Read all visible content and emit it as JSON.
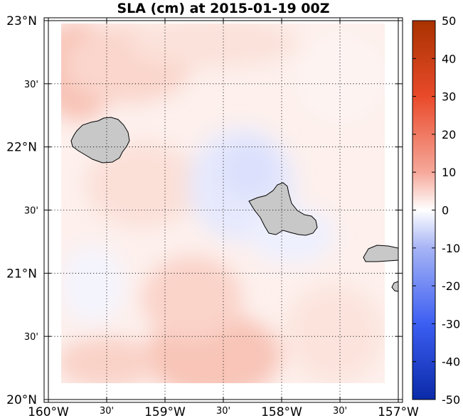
{
  "title": "SLA (cm) at 2015-01-19 00Z",
  "map": {
    "lon_range": [
      -160,
      -157
    ],
    "lat_range": [
      20,
      23
    ],
    "x_ticks": [
      {
        "lon": -160,
        "label": "160°W",
        "major": true
      },
      {
        "lon": -159.5,
        "label": "30'",
        "major": false
      },
      {
        "lon": -159,
        "label": "159°W",
        "major": true
      },
      {
        "lon": -158.5,
        "label": "30'",
        "major": false
      },
      {
        "lon": -158,
        "label": "158°W",
        "major": true
      },
      {
        "lon": -157.5,
        "label": "30'",
        "major": false
      },
      {
        "lon": -157,
        "label": "157°W",
        "major": true
      }
    ],
    "y_ticks": [
      {
        "lat": 23,
        "label": "23°N",
        "major": true
      },
      {
        "lat": 22.5,
        "label": "30'",
        "major": false
      },
      {
        "lat": 22,
        "label": "22°N",
        "major": true
      },
      {
        "lat": 21.5,
        "label": "30'",
        "major": false
      },
      {
        "lat": 21,
        "label": "21°N",
        "major": true
      },
      {
        "lat": 20.5,
        "label": "30'",
        "major": false
      },
      {
        "lat": 20,
        "label": "20°N",
        "major": true
      }
    ],
    "grid": "dotted",
    "land_color": "#c8c8c8",
    "field": {
      "variable": "SLA",
      "units": "cm",
      "lon_extent": [
        -159.9,
        -157.15
      ],
      "lat_extent": [
        20.25,
        22.95
      ],
      "sample_values": [
        {
          "lon": -159.7,
          "lat": 22.6,
          "value": 10
        },
        {
          "lon": -158.1,
          "lat": 21.8,
          "value": -3
        },
        {
          "lon": -158.7,
          "lat": 20.4,
          "value": 10
        },
        {
          "lon": -159.75,
          "lat": 20.9,
          "value": -1
        },
        {
          "lon": -157.5,
          "lat": 22.5,
          "value": 3
        }
      ]
    }
  },
  "colorbar": {
    "range": [
      -50,
      50
    ],
    "ticks": [
      50,
      40,
      30,
      20,
      10,
      0,
      -10,
      -20,
      -30,
      -40,
      -50
    ],
    "colormap": "blue-white-red"
  }
}
